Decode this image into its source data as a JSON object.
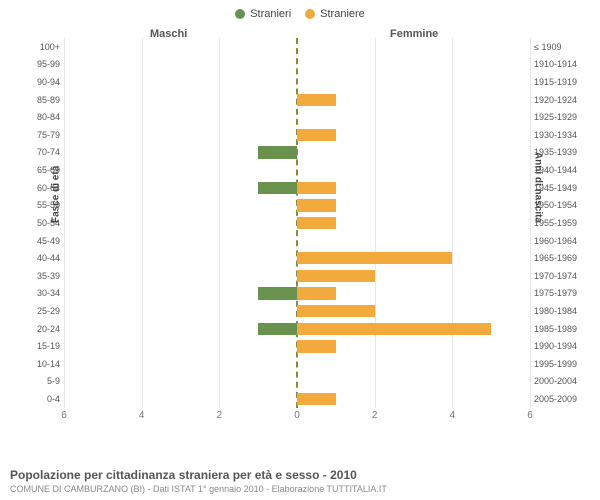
{
  "legend": {
    "male": {
      "label": "Stranieri",
      "color": "#69924e"
    },
    "female": {
      "label": "Straniere",
      "color": "#f2aa3d"
    }
  },
  "headers": {
    "left": "Maschi",
    "right": "Femmine"
  },
  "axis_labels": {
    "left": "Fasce di età",
    "right": "Anni di nascita"
  },
  "x_ticks": [
    6,
    4,
    2,
    0,
    2,
    4,
    6
  ],
  "x_max": 6,
  "grid_color": "#e8e8e8",
  "center_line_color": "#8a8a3a",
  "bar_male_color": "#69924e",
  "bar_female_color": "#f2aa3d",
  "background_color": "#ffffff",
  "age_groups": [
    {
      "age": "100+",
      "year": "≤ 1909",
      "m": 0,
      "f": 0
    },
    {
      "age": "95-99",
      "year": "1910-1914",
      "m": 0,
      "f": 0
    },
    {
      "age": "90-94",
      "year": "1915-1919",
      "m": 0,
      "f": 0
    },
    {
      "age": "85-89",
      "year": "1920-1924",
      "m": 0,
      "f": 1
    },
    {
      "age": "80-84",
      "year": "1925-1929",
      "m": 0,
      "f": 0
    },
    {
      "age": "75-79",
      "year": "1930-1934",
      "m": 0,
      "f": 1
    },
    {
      "age": "70-74",
      "year": "1935-1939",
      "m": 1,
      "f": 0
    },
    {
      "age": "65-69",
      "year": "1940-1944",
      "m": 0,
      "f": 0
    },
    {
      "age": "60-64",
      "year": "1945-1949",
      "m": 1,
      "f": 1
    },
    {
      "age": "55-59",
      "year": "1950-1954",
      "m": 0,
      "f": 1
    },
    {
      "age": "50-54",
      "year": "1955-1959",
      "m": 0,
      "f": 1
    },
    {
      "age": "45-49",
      "year": "1960-1964",
      "m": 0,
      "f": 0
    },
    {
      "age": "40-44",
      "year": "1965-1969",
      "m": 0,
      "f": 4
    },
    {
      "age": "35-39",
      "year": "1970-1974",
      "m": 0,
      "f": 2
    },
    {
      "age": "30-34",
      "year": "1975-1979",
      "m": 1,
      "f": 1
    },
    {
      "age": "25-29",
      "year": "1980-1984",
      "m": 0,
      "f": 2
    },
    {
      "age": "20-24",
      "year": "1985-1989",
      "m": 1,
      "f": 5
    },
    {
      "age": "15-19",
      "year": "1990-1994",
      "m": 0,
      "f": 1
    },
    {
      "age": "10-14",
      "year": "1995-1999",
      "m": 0,
      "f": 0
    },
    {
      "age": "5-9",
      "year": "2000-2004",
      "m": 0,
      "f": 0
    },
    {
      "age": "0-4",
      "year": "2005-2009",
      "m": 0,
      "f": 1
    }
  ],
  "footer": {
    "title": "Popolazione per cittadinanza straniera per età e sesso - 2010",
    "subtitle": "COMUNE DI CAMBURZANO (BI) - Dati ISTAT 1° gennaio 2010 - Elaborazione TUTTITALIA.IT"
  }
}
